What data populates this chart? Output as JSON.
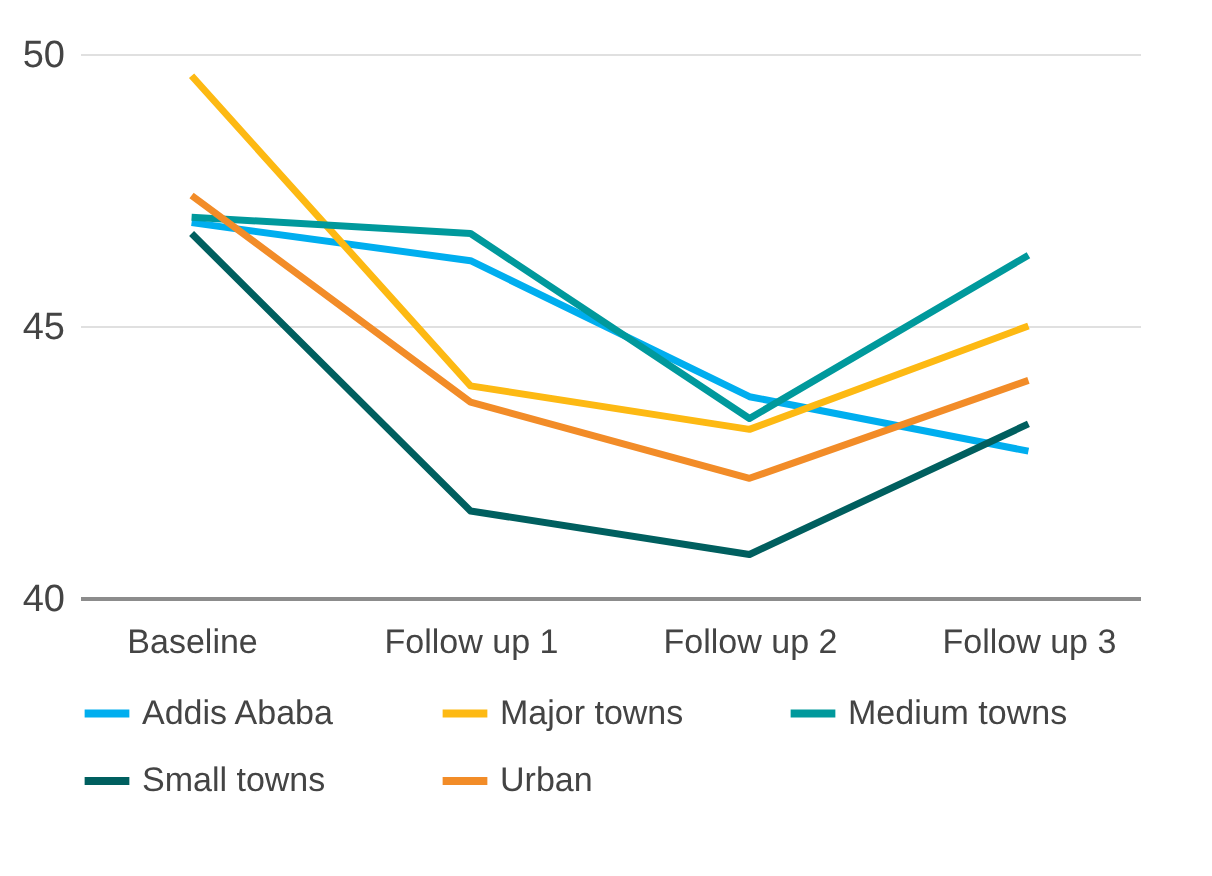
{
  "chart_data": {
    "type": "line",
    "categories": [
      "Baseline",
      "Follow up 1",
      "Follow up 2",
      "Follow up 3"
    ],
    "series": [
      {
        "name": "Addis Ababa",
        "color": "#00aeef",
        "values": [
          46.9,
          46.2,
          43.7,
          42.7
        ]
      },
      {
        "name": "Major towns",
        "color": "#fdb913",
        "values": [
          49.6,
          43.9,
          43.1,
          45.0
        ]
      },
      {
        "name": "Medium towns",
        "color": "#00999c",
        "values": [
          47.0,
          46.7,
          43.3,
          46.3
        ]
      },
      {
        "name": "Small towns",
        "color": "#005f5f",
        "values": [
          46.7,
          41.6,
          40.8,
          43.2
        ]
      },
      {
        "name": "Urban",
        "color": "#f28c28",
        "values": [
          47.4,
          43.6,
          42.2,
          44.0
        ]
      }
    ],
    "ylim": [
      40,
      50
    ],
    "yticks": [
      40,
      45,
      50
    ],
    "grid": "y",
    "legend": "bottom",
    "marker": "none",
    "line_style": "solid"
  }
}
